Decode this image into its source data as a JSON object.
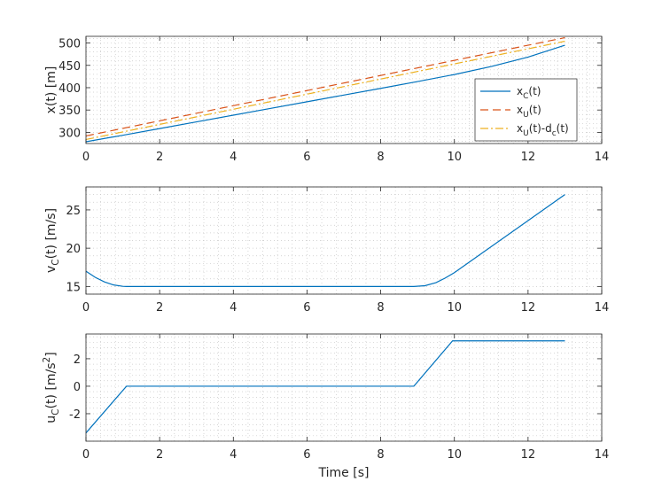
{
  "chart_data": [
    {
      "type": "line",
      "ylabel": "x(t) [m]",
      "xlim": [
        0,
        14
      ],
      "ylim": [
        275,
        515
      ],
      "x_ticks": [
        0,
        2,
        4,
        6,
        8,
        10,
        12,
        14
      ],
      "y_ticks": [
        300,
        350,
        400,
        450,
        500
      ],
      "grid": "minor",
      "legend_position": "bottom-right",
      "series": [
        {
          "name": "x_C(t)",
          "color": "#0072bd",
          "dash": "solid",
          "x": [
            0,
            1,
            2,
            3,
            4,
            5,
            6,
            7,
            8,
            9,
            10,
            11,
            12,
            13
          ],
          "y": [
            279,
            293.5,
            308.5,
            323.5,
            338.5,
            353.5,
            368.5,
            383.5,
            398.5,
            413.7,
            429.5,
            447.5,
            468.5,
            495
          ]
        },
        {
          "name": "x_U(t)",
          "color": "#d95319",
          "dash": "dashed",
          "x": [
            0,
            13
          ],
          "y": [
            292,
            512
          ]
        },
        {
          "name": "x_U(t)-d_c(t)",
          "color": "#edb120",
          "dash": "dashdot",
          "x": [
            0,
            13
          ],
          "y": [
            284,
            504
          ]
        }
      ]
    },
    {
      "type": "line",
      "ylabel": "v_C(t) [m/s]",
      "xlim": [
        0,
        14
      ],
      "ylim": [
        14,
        28
      ],
      "x_ticks": [
        0,
        2,
        4,
        6,
        8,
        10,
        12,
        14
      ],
      "y_ticks": [
        15,
        20,
        25
      ],
      "grid": "minor",
      "series": [
        {
          "name": "",
          "color": "#0072bd",
          "dash": "solid",
          "x": [
            0,
            0.25,
            0.5,
            0.75,
            1.0,
            1.1,
            8.9,
            9.2,
            9.5,
            9.75,
            10,
            13
          ],
          "y": [
            17,
            16.2,
            15.6,
            15.2,
            15.02,
            15,
            15,
            15.1,
            15.5,
            16.1,
            16.8,
            27
          ]
        }
      ]
    },
    {
      "type": "line",
      "ylabel": "u_C(t) [m/s^2]",
      "xlabel": "Time [s]",
      "xlim": [
        0,
        14
      ],
      "ylim": [
        -4,
        3.8
      ],
      "x_ticks": [
        0,
        2,
        4,
        6,
        8,
        10,
        12,
        14
      ],
      "y_ticks": [
        -2,
        0,
        2
      ],
      "grid": "minor",
      "series": [
        {
          "name": "",
          "color": "#0072bd",
          "dash": "solid",
          "x": [
            0,
            1.1,
            8.9,
            9.95,
            13
          ],
          "y": [
            -3.4,
            0,
            0,
            3.3,
            3.3
          ]
        }
      ]
    }
  ]
}
